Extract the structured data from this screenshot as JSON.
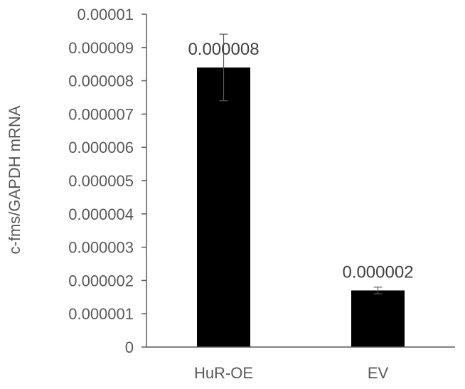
{
  "chart_data": {
    "type": "bar",
    "categories": [
      "HuR-OE",
      "EV"
    ],
    "values": [
      8.4e-06,
      1.7e-06
    ],
    "error": [
      1e-06,
      1e-07
    ],
    "data_labels": [
      "0.000008",
      "0.000002"
    ],
    "title": "",
    "xlabel": "",
    "ylabel": "c-fms/GAPDH mRNA",
    "ylim": [
      0,
      1e-05
    ],
    "y_ticks": [
      {
        "value": 0,
        "label": "0"
      },
      {
        "value": 1e-06,
        "label": "0.000001"
      },
      {
        "value": 2e-06,
        "label": "0.000002"
      },
      {
        "value": 3e-06,
        "label": "0.000003"
      },
      {
        "value": 4e-06,
        "label": "0.000004"
      },
      {
        "value": 5e-06,
        "label": "0.000005"
      },
      {
        "value": 6e-06,
        "label": "0.000006"
      },
      {
        "value": 7e-06,
        "label": "0.000007"
      },
      {
        "value": 8e-06,
        "label": "0.000008"
      },
      {
        "value": 9e-06,
        "label": "0.000009"
      },
      {
        "value": 1e-05,
        "label": "0.00001"
      }
    ],
    "grid": false,
    "legend": "none",
    "colors": {
      "bar": "#000000",
      "axis": "#595959",
      "error_bar": "#595959"
    }
  }
}
